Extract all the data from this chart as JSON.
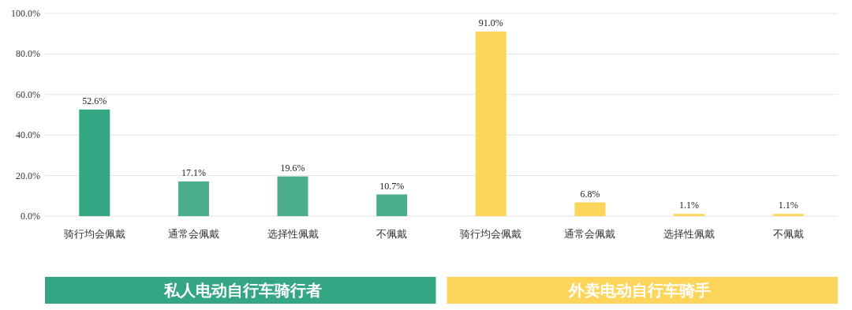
{
  "chart_data": {
    "type": "bar",
    "categories": [
      "骑行均会佩戴",
      "通常会佩戴",
      "选择性佩戴",
      "不佩戴",
      "骑行均会佩戴",
      "通常会佩戴",
      "选择性佩戴",
      "不佩戴"
    ],
    "series": [
      {
        "name": "私人电动自行车骑行者",
        "colors": [
          "#34a683",
          "#4aae8c",
          "#4aae8c",
          "#4aae8c",
          null,
          null,
          null,
          null
        ],
        "values": [
          52.6,
          17.1,
          19.6,
          10.7,
          null,
          null,
          null,
          null
        ],
        "value_labels": [
          "52.6%",
          "17.1%",
          "19.6%",
          "10.7%",
          null,
          null,
          null,
          null
        ]
      },
      {
        "name": "外卖电动自行车骑手",
        "color": "#fdd55b",
        "values": [
          null,
          null,
          null,
          null,
          91.0,
          6.8,
          1.1,
          1.1
        ],
        "value_labels": [
          null,
          null,
          null,
          null,
          "91.0%",
          "6.8%",
          "1.1%",
          "1.1%"
        ]
      }
    ],
    "ylim": [
      0,
      100
    ],
    "yticks": [
      {
        "value": 0,
        "label": "0.0%"
      },
      {
        "value": 20,
        "label": "20.0%"
      },
      {
        "value": 40,
        "label": "40.0%"
      },
      {
        "value": 60,
        "label": "60.0%"
      },
      {
        "value": 80,
        "label": "80.0%"
      },
      {
        "value": 100,
        "label": "100.0%"
      }
    ],
    "grid": "y"
  }
}
